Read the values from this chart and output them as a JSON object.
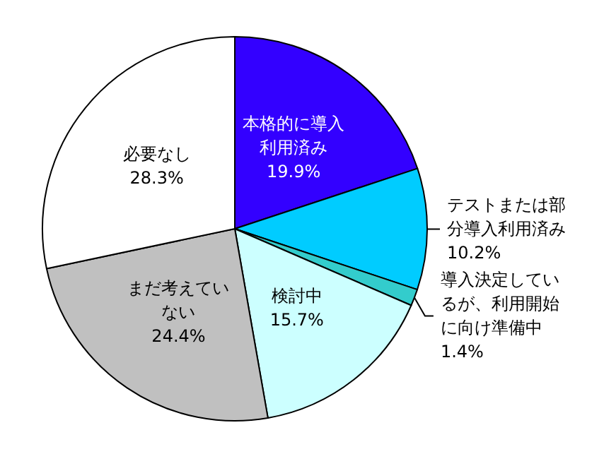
{
  "chart_data": {
    "type": "pie",
    "categories": [
      "本格的に導入利用済み",
      "テストまたは部分導入利用済み",
      "導入決定しているが、利用開始に向け準備中",
      "検討中",
      "まだ考えていない",
      "必要なし"
    ],
    "values": [
      19.9,
      10.2,
      1.4,
      15.7,
      24.4,
      28.3
    ],
    "colors": [
      "#3300ff",
      "#00ccff",
      "#33cccc",
      "#ccffff",
      "#c0c0c0",
      "#ffffff"
    ],
    "value_labels": [
      "19.9%",
      "10.2%",
      "1.4%",
      "15.7%",
      "24.4%",
      "28.3%"
    ]
  }
}
